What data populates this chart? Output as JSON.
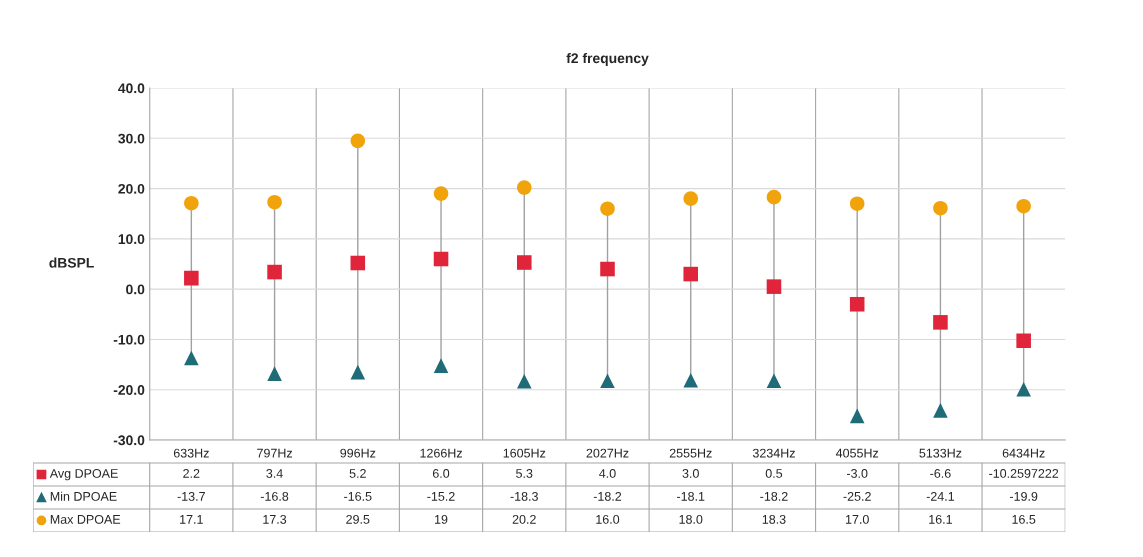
{
  "chart_data": {
    "type": "scatter",
    "title": "f2 frequency",
    "ylabel": "dBSPL",
    "categories": [
      "633Hz",
      "797Hz",
      "996Hz",
      "1266Hz",
      "1605Hz",
      "2027Hz",
      "2555Hz",
      "3234Hz",
      "4055Hz",
      "5133Hz",
      "6434Hz"
    ],
    "series": [
      {
        "name": "Avg DPOAE",
        "color": "#e0243a",
        "marker": "square",
        "values": [
          2.2,
          3.4,
          5.2,
          6.0,
          5.3,
          4.0,
          3.0,
          0.5,
          -3.0,
          -6.6,
          -10.2597222
        ],
        "value_labels": [
          "2.2",
          "3.4",
          "5.2",
          "6.0",
          "5.3",
          "4.0",
          "3.0",
          "0.5",
          "-3.0",
          "-6.6",
          "-10.2597222"
        ]
      },
      {
        "name": "Min DPOAE",
        "color": "#1f6b78",
        "marker": "triangle",
        "values": [
          -13.7,
          -16.8,
          -16.5,
          -15.2,
          -18.3,
          -18.2,
          -18.1,
          -18.2,
          -25.2,
          -24.1,
          -19.9
        ],
        "value_labels": [
          "-13.7",
          "-16.8",
          "-16.5",
          "-15.2",
          "-18.3",
          "-18.2",
          "-18.1",
          "-18.2",
          "-25.2",
          "-24.1",
          "-19.9"
        ]
      },
      {
        "name": "Max DPOAE",
        "color": "#f0a30a",
        "marker": "circle",
        "values": [
          17.1,
          17.3,
          29.5,
          19,
          20.2,
          16.0,
          18.0,
          18.3,
          17.0,
          16.1,
          16.5
        ],
        "value_labels": [
          "17.1",
          "17.3",
          "29.5",
          "19",
          "20.2",
          "16.0",
          "18.0",
          "18.3",
          "17.0",
          "16.1",
          "16.5"
        ]
      }
    ],
    "ylim": [
      -30,
      40
    ],
    "yticks": [
      {
        "value": -30,
        "label": "-30.0"
      },
      {
        "value": -20,
        "label": "-20.0"
      },
      {
        "value": -10,
        "label": "-10.0"
      },
      {
        "value": 0,
        "label": "0.0"
      },
      {
        "value": 10,
        "label": "10.0"
      },
      {
        "value": 20,
        "label": "20.0"
      },
      {
        "value": 30,
        "label": "30.0"
      },
      {
        "value": 40,
        "label": "40.0"
      }
    ],
    "grid": true,
    "legend": "bottom left"
  }
}
